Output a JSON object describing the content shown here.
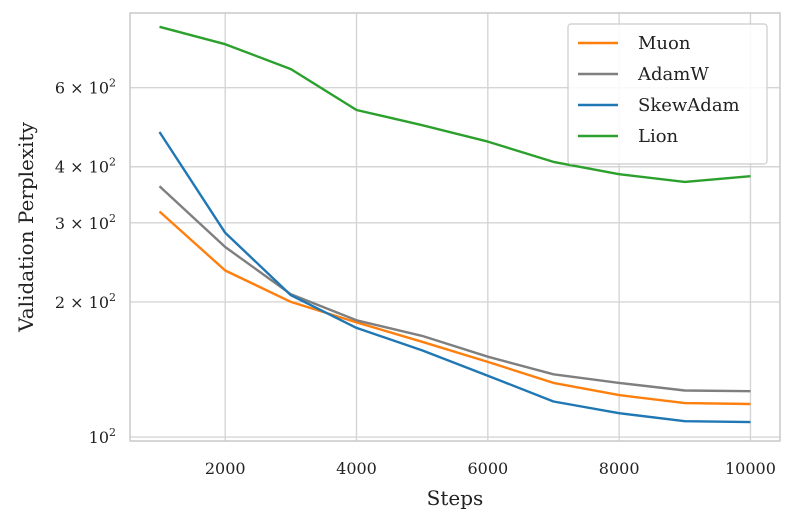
{
  "chart_data": {
    "type": "line",
    "xlabel": "Steps",
    "ylabel": "Validation Perplexity",
    "yscale": "log",
    "xlim": [
      550,
      10450
    ],
    "ylim": [
      98,
      880
    ],
    "x_ticks": [
      2000,
      4000,
      6000,
      8000,
      10000
    ],
    "y_ticks": [
      {
        "value": 100,
        "base": "10",
        "exp": "2",
        "coef": ""
      },
      {
        "value": 200,
        "base": "10",
        "exp": "2",
        "coef": "2 × "
      },
      {
        "value": 300,
        "base": "10",
        "exp": "2",
        "coef": "3 × "
      },
      {
        "value": 400,
        "base": "10",
        "exp": "2",
        "coef": "4 × "
      },
      {
        "value": 600,
        "base": "10",
        "exp": "2",
        "coef": "6 × "
      }
    ],
    "grid": true,
    "legend_position": "top-right",
    "x": [
      1000,
      2000,
      3000,
      4000,
      5000,
      6000,
      7000,
      8000,
      9000,
      10000
    ],
    "series": [
      {
        "name": "Muon",
        "color": "#ff7f0e",
        "values": [
          318,
          235,
          200,
          180,
          163,
          147,
          132,
          124,
          119,
          118.5
        ]
      },
      {
        "name": "AdamW",
        "color": "#7f7f7f",
        "values": [
          362,
          265,
          208,
          182,
          168,
          151,
          138,
          132,
          127,
          126.5
        ]
      },
      {
        "name": "SkewAdam",
        "color": "#1f77b4",
        "values": [
          478,
          285,
          207,
          175,
          156,
          137,
          120,
          113,
          108.5,
          108
        ]
      },
      {
        "name": "Lion",
        "color": "#2ca02c",
        "values": [
          820,
          750,
          660,
          535,
          495,
          455,
          410,
          385,
          370,
          381
        ]
      }
    ]
  }
}
